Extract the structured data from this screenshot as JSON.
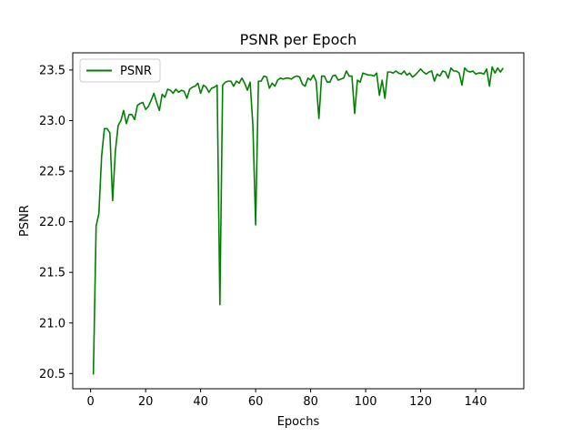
{
  "chart_data": {
    "type": "line",
    "title": "PSNR per Epoch",
    "xlabel": "Epochs",
    "ylabel": "PSNR",
    "xlim": [
      -6.5,
      157.5
    ],
    "ylim": [
      20.35,
      23.67
    ],
    "xticks": [
      0,
      20,
      40,
      60,
      80,
      100,
      120,
      140
    ],
    "yticks": [
      20.5,
      21.0,
      21.5,
      22.0,
      22.5,
      23.0,
      23.5
    ],
    "xtick_labels": [
      "0",
      "20",
      "40",
      "60",
      "80",
      "100",
      "120",
      "140"
    ],
    "ytick_labels": [
      "20.5",
      "21.0",
      "21.5",
      "22.0",
      "22.5",
      "23.0",
      "23.5"
    ],
    "grid": false,
    "legend": "top-left",
    "series": [
      {
        "name": "PSNR",
        "color": "#008000",
        "x": [
          1,
          2,
          3,
          4,
          5,
          6,
          7,
          8,
          9,
          10,
          11,
          12,
          13,
          14,
          15,
          16,
          17,
          18,
          19,
          20,
          21,
          22,
          23,
          24,
          25,
          26,
          27,
          28,
          29,
          30,
          31,
          32,
          33,
          34,
          35,
          36,
          37,
          38,
          39,
          40,
          41,
          42,
          43,
          44,
          45,
          46,
          47,
          48,
          49,
          50,
          51,
          52,
          53,
          54,
          55,
          56,
          57,
          58,
          59,
          60,
          61,
          62,
          63,
          64,
          65,
          66,
          67,
          68,
          69,
          70,
          71,
          72,
          73,
          74,
          75,
          76,
          77,
          78,
          79,
          80,
          81,
          82,
          83,
          84,
          85,
          86,
          87,
          88,
          89,
          90,
          91,
          92,
          93,
          94,
          95,
          96,
          97,
          98,
          99,
          100,
          101,
          102,
          103,
          104,
          105,
          106,
          107,
          108,
          109,
          110,
          111,
          112,
          113,
          114,
          115,
          116,
          117,
          118,
          119,
          120,
          121,
          122,
          123,
          124,
          125,
          126,
          127,
          128,
          129,
          130,
          131,
          132,
          133,
          134,
          135,
          136,
          137,
          138,
          139,
          140,
          141,
          142,
          143,
          144,
          145,
          146,
          147,
          148,
          149,
          150
        ],
        "y": [
          20.49,
          21.96,
          22.08,
          22.65,
          22.92,
          22.92,
          22.88,
          22.21,
          22.7,
          22.95,
          23.0,
          23.1,
          22.97,
          23.06,
          23.06,
          23.01,
          23.15,
          23.17,
          23.18,
          23.11,
          23.14,
          23.2,
          23.27,
          23.18,
          23.1,
          23.26,
          23.23,
          23.31,
          23.3,
          23.27,
          23.31,
          23.28,
          23.3,
          23.29,
          23.22,
          23.31,
          23.33,
          23.34,
          23.37,
          23.27,
          23.35,
          23.33,
          23.28,
          23.32,
          23.33,
          23.35,
          21.18,
          23.35,
          23.38,
          23.39,
          23.39,
          23.34,
          23.39,
          23.37,
          23.42,
          23.37,
          23.3,
          23.38,
          22.95,
          21.97,
          23.39,
          23.39,
          23.44,
          23.43,
          23.32,
          23.37,
          23.34,
          23.4,
          23.42,
          23.41,
          23.42,
          23.42,
          23.41,
          23.43,
          23.44,
          23.43,
          23.36,
          23.34,
          23.42,
          23.4,
          23.45,
          23.39,
          23.02,
          23.44,
          23.44,
          23.38,
          23.38,
          23.44,
          23.45,
          23.4,
          23.41,
          23.42,
          23.49,
          23.44,
          23.44,
          23.07,
          23.4,
          23.38,
          23.47,
          23.46,
          23.45,
          23.45,
          23.44,
          23.47,
          23.25,
          23.4,
          23.22,
          23.48,
          23.48,
          23.47,
          23.49,
          23.47,
          23.46,
          23.49,
          23.45,
          23.47,
          23.43,
          23.45,
          23.48,
          23.51,
          23.48,
          23.46,
          23.48,
          23.49,
          23.39,
          23.46,
          23.44,
          23.49,
          23.48,
          23.42,
          23.52,
          23.49,
          23.49,
          23.47,
          23.35,
          23.52,
          23.49,
          23.48,
          23.49,
          23.46,
          23.47,
          23.47,
          23.46,
          23.51,
          23.34,
          23.53,
          23.47,
          23.52,
          23.48,
          23.52
        ]
      }
    ]
  }
}
